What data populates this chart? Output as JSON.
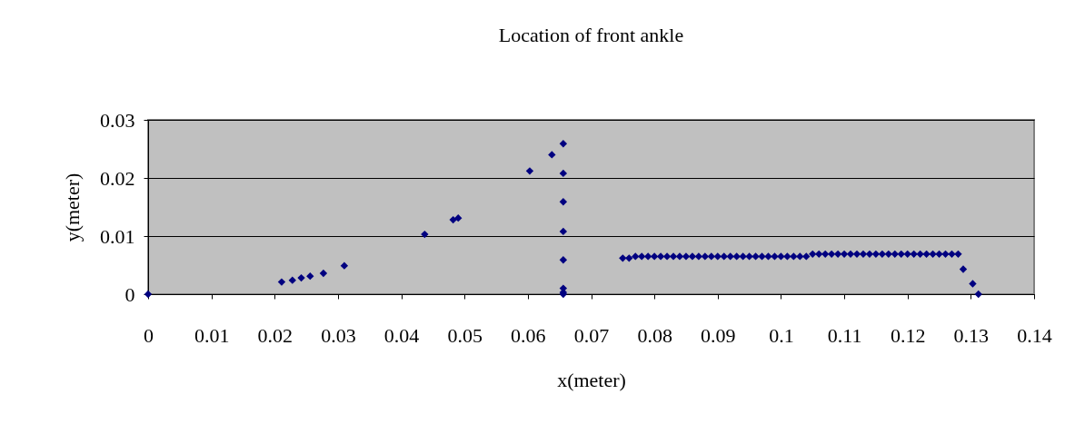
{
  "chart_data": {
    "type": "scatter",
    "title": "Location of front ankle",
    "xlabel": "x(meter)",
    "ylabel": "y(meter)",
    "x": [
      0,
      0.0211,
      0.0228,
      0.0242,
      0.0256,
      0.0277,
      0.031,
      0.0437,
      0.0482,
      0.049,
      0.0603,
      0.0638,
      0.0656,
      0.0656,
      0.0656,
      0.0656,
      0.0656,
      0.0656,
      0.0656,
      0.0656,
      0.075,
      0.076,
      0.077,
      0.078,
      0.079,
      0.08,
      0.081,
      0.082,
      0.083,
      0.084,
      0.085,
      0.086,
      0.087,
      0.088,
      0.089,
      0.09,
      0.091,
      0.092,
      0.093,
      0.094,
      0.095,
      0.096,
      0.097,
      0.098,
      0.099,
      0.1,
      0.101,
      0.102,
      0.103,
      0.104,
      0.105,
      0.106,
      0.107,
      0.108,
      0.109,
      0.11,
      0.111,
      0.112,
      0.113,
      0.114,
      0.115,
      0.116,
      0.117,
      0.118,
      0.119,
      0.12,
      0.121,
      0.122,
      0.123,
      0.124,
      0.125,
      0.126,
      0.127,
      0.128,
      0.1288,
      0.1303,
      0.1312
    ],
    "series": [
      {
        "color": "#000080",
        "values": [
          0,
          0.0021,
          0.0024,
          0.0028,
          0.0031,
          0.0036,
          0.0049,
          0.0103,
          0.0128,
          0.0131,
          0.0212,
          0.024,
          0.0259,
          0.0208,
          0.0159,
          0.0108,
          0.0059,
          0.001,
          0.0003,
          0,
          0.0062,
          0.0062,
          0.0065,
          0.0065,
          0.0065,
          0.0065,
          0.0065,
          0.0065,
          0.0065,
          0.0065,
          0.0065,
          0.0065,
          0.0065,
          0.0065,
          0.0065,
          0.0065,
          0.0065,
          0.0065,
          0.0065,
          0.0065,
          0.0065,
          0.0065,
          0.0065,
          0.0065,
          0.0065,
          0.0065,
          0.0065,
          0.0065,
          0.0065,
          0.0065,
          0.0069,
          0.0069,
          0.0069,
          0.0069,
          0.0069,
          0.0069,
          0.0069,
          0.0069,
          0.0069,
          0.0069,
          0.0069,
          0.0069,
          0.0069,
          0.0069,
          0.0069,
          0.0069,
          0.0069,
          0.0069,
          0.0069,
          0.0069,
          0.0069,
          0.0069,
          0.0069,
          0.0069,
          0.0043,
          0.0018,
          0
        ]
      }
    ],
    "xlim": [
      0,
      0.14
    ],
    "xticks": [
      0,
      0.01,
      0.02,
      0.03,
      0.04,
      0.05,
      0.06,
      0.07,
      0.08,
      0.09,
      0.1,
      0.11,
      0.12,
      0.13,
      0.14
    ],
    "ylim": [
      0,
      0.03
    ],
    "yticks": [
      0,
      0.01,
      0.02,
      0.03
    ],
    "grid": "y",
    "marker": "diamond",
    "legend": false
  }
}
